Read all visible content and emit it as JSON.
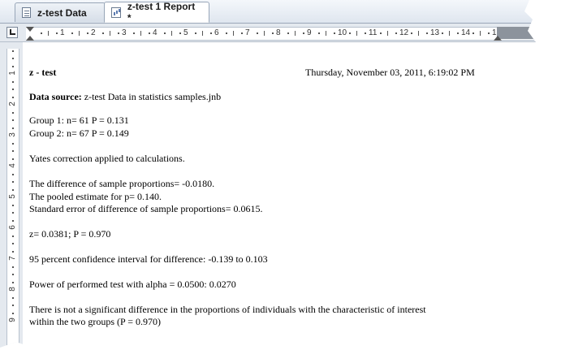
{
  "tabs": [
    {
      "label": "z-test Data",
      "icon": "data-sheet-icon"
    },
    {
      "label": "z-test 1 Report *",
      "icon": "report-icon"
    }
  ],
  "ruler": {
    "horizontal_numbers": [
      "1",
      "2",
      "3",
      "4",
      "5",
      "6",
      "7",
      "8",
      "9",
      "10",
      "11",
      "12",
      "13",
      "14",
      "15"
    ],
    "vertical_numbers": [
      "1",
      "2",
      "3",
      "4",
      "5",
      "6",
      "7",
      "8",
      "9"
    ]
  },
  "report": {
    "title": "z - test",
    "timestamp": "Thursday, November 03, 2011, 6:19:02 PM",
    "data_source_label": "Data source:",
    "data_source_value": " z-test Data in statistics samples.jnb",
    "group1": "Group 1:  n= 61    P = 0.131",
    "group2": "Group 2:  n= 67    P = 0.149",
    "yates": "Yates correction applied to calculations.",
    "diff": "The difference of sample proportions= -0.0180.",
    "pooled": "The pooled estimate for p= 0.140.",
    "stderr": "Standard error of difference of sample proportions= 0.0615.",
    "zresult": "z= 0.0381;    P = 0.970",
    "ci": " 95 percent confidence interval for difference:  -0.139 to 0.103",
    "power": "Power of performed test with alpha = 0.0500: 0.0270",
    "conclusion1": "There is not a significant difference in the proportions of individuals with the characteristic of interest",
    "conclusion2": "within the two groups (P = 0.970)"
  }
}
